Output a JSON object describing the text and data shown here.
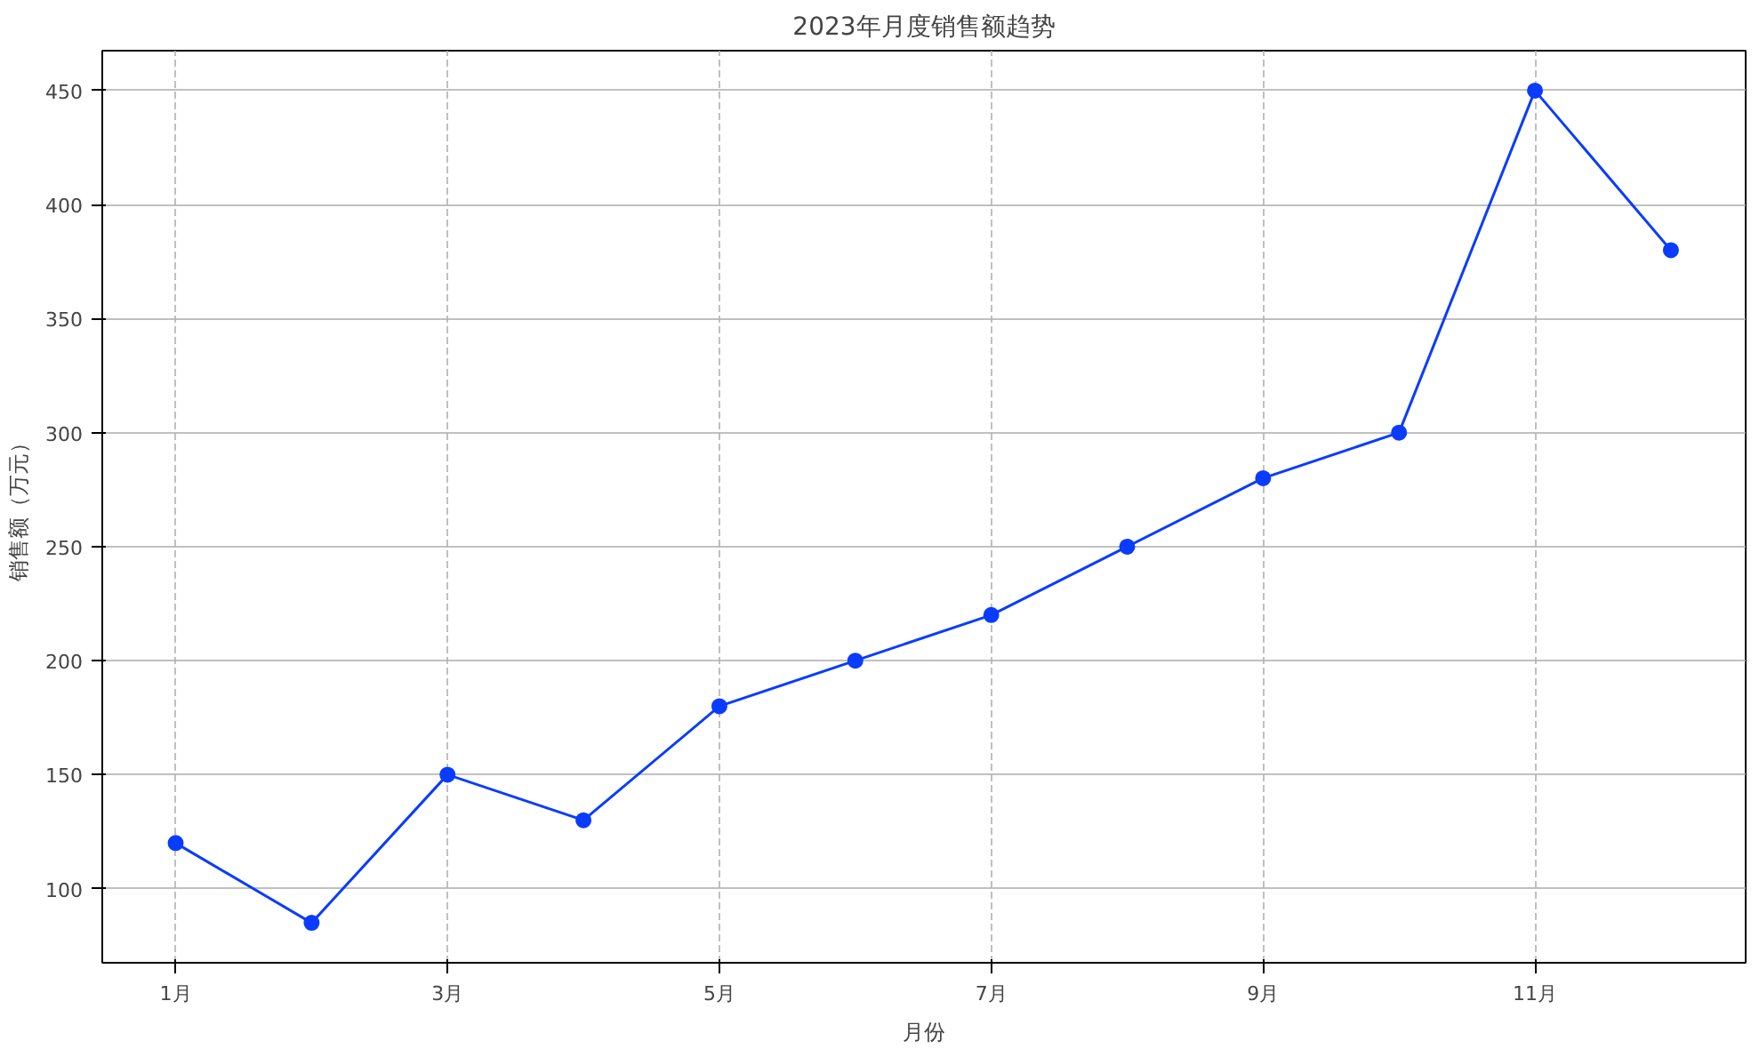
{
  "chart_data": {
    "type": "line",
    "title": "2023年月度销售额趋势",
    "xlabel": "月份",
    "ylabel": "销售额（万元）",
    "x": [
      1,
      2,
      3,
      4,
      5,
      6,
      7,
      8,
      9,
      10,
      11,
      12
    ],
    "series": [
      {
        "color": "#0a3cff",
        "values": [
          120,
          85,
          150,
          130,
          180,
          200,
          220,
          250,
          280,
          300,
          450,
          380
        ]
      }
    ],
    "xlim": [
      0.46,
      12.55
    ],
    "xticks": [
      {
        "value": 1,
        "label": "1月"
      },
      {
        "value": 3,
        "label": "3月"
      },
      {
        "value": 5,
        "label": "5月"
      },
      {
        "value": 7,
        "label": "7月"
      },
      {
        "value": 9,
        "label": "9月"
      },
      {
        "value": 11,
        "label": "11月"
      }
    ],
    "ylim": [
      67.5,
      467.5
    ],
    "yticks": [
      100,
      150,
      200,
      250,
      300,
      350,
      400,
      450
    ],
    "grid": true,
    "marker": "circle",
    "line_style": "solid"
  }
}
